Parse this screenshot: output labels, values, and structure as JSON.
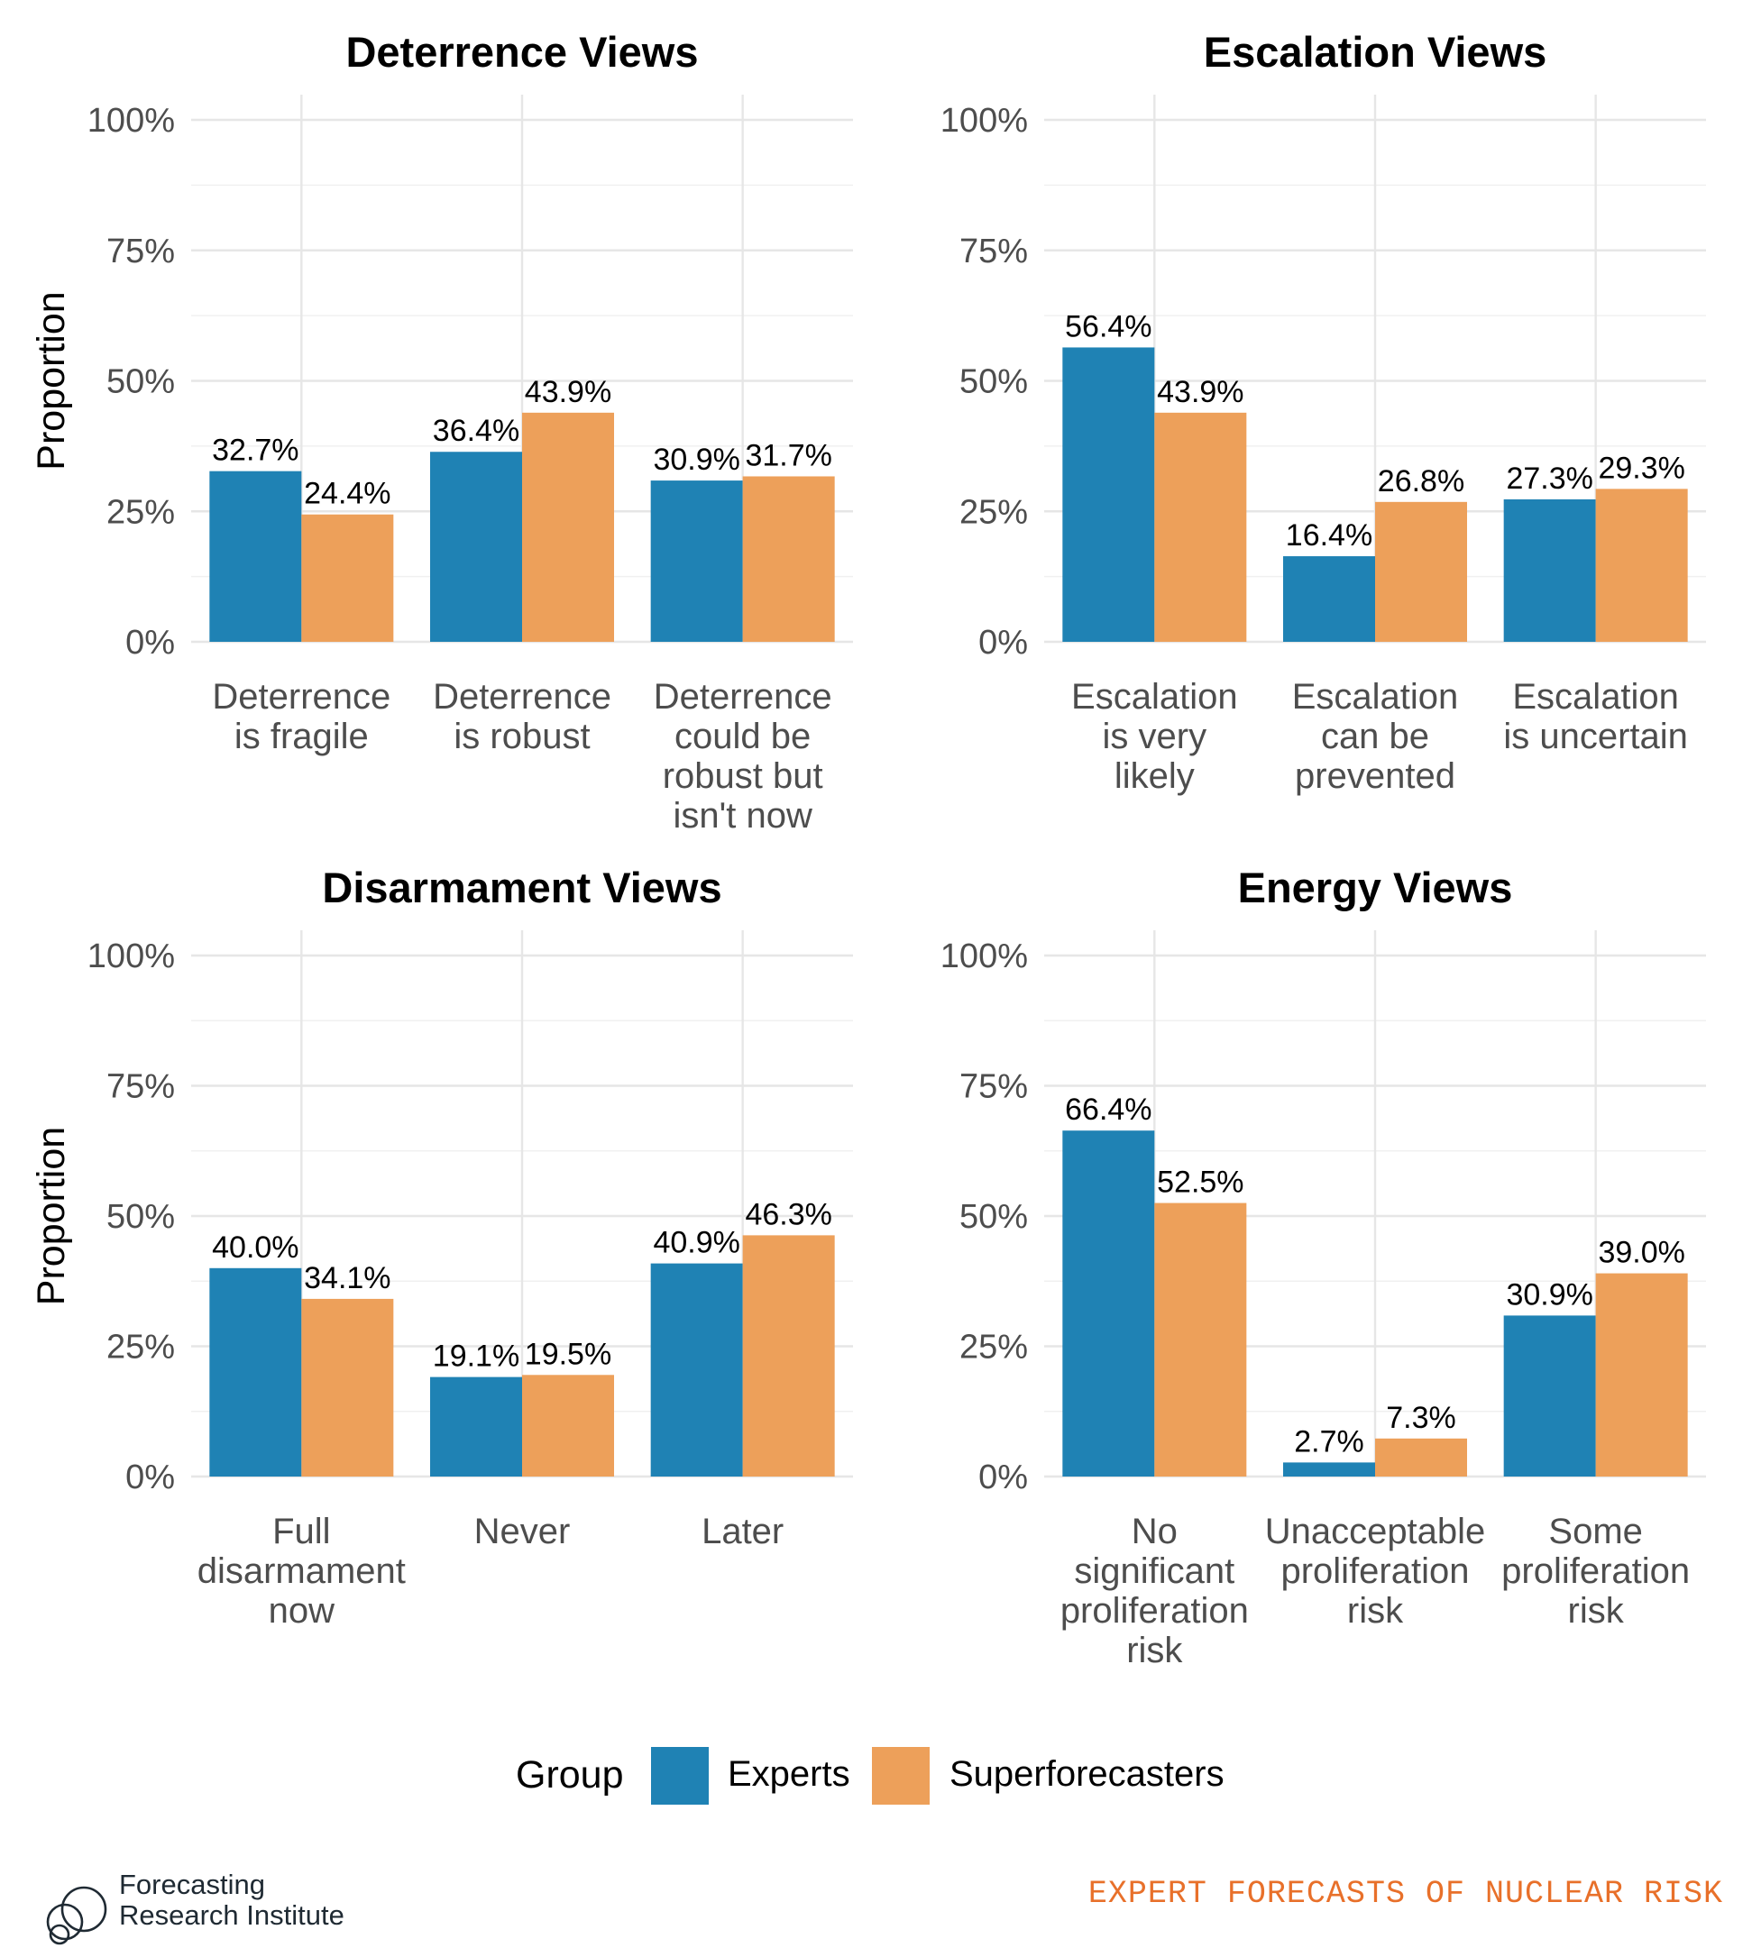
{
  "chart_data": [
    {
      "type": "bar",
      "title": "Deterrence Views",
      "ylabel": "Proportion",
      "xlabel": "",
      "ylim": [
        0,
        1
      ],
      "yticks": [
        "0%",
        "25%",
        "50%",
        "75%",
        "100%"
      ],
      "categories": [
        [
          "Deterrence",
          "is fragile"
        ],
        [
          "Deterrence",
          "is robust"
        ],
        [
          "Deterrence",
          "could be",
          "robust but",
          "isn't now"
        ]
      ],
      "series": [
        {
          "name": "Experts",
          "values": [
            0.327,
            0.364,
            0.309
          ],
          "labels": [
            "32.7%",
            "36.4%",
            "30.9%"
          ]
        },
        {
          "name": "Superforecasters",
          "values": [
            0.244,
            0.439,
            0.317
          ],
          "labels": [
            "24.4%",
            "43.9%",
            "31.7%"
          ]
        }
      ]
    },
    {
      "type": "bar",
      "title": "Escalation Views",
      "ylabel": "",
      "xlabel": "",
      "ylim": [
        0,
        1
      ],
      "yticks": [
        "0%",
        "25%",
        "50%",
        "75%",
        "100%"
      ],
      "categories": [
        [
          "Escalation",
          "is very",
          "likely"
        ],
        [
          "Escalation",
          "can be",
          "prevented"
        ],
        [
          "Escalation",
          "is uncertain"
        ]
      ],
      "series": [
        {
          "name": "Experts",
          "values": [
            0.564,
            0.164,
            0.273
          ],
          "labels": [
            "56.4%",
            "16.4%",
            "27.3%"
          ]
        },
        {
          "name": "Superforecasters",
          "values": [
            0.439,
            0.268,
            0.293
          ],
          "labels": [
            "43.9%",
            "26.8%",
            "29.3%"
          ]
        }
      ]
    },
    {
      "type": "bar",
      "title": "Disarmament Views",
      "ylabel": "Proportion",
      "xlabel": "",
      "ylim": [
        0,
        1
      ],
      "yticks": [
        "0%",
        "25%",
        "50%",
        "75%",
        "100%"
      ],
      "categories": [
        [
          "Full",
          "disarmament",
          "now"
        ],
        [
          "Never"
        ],
        [
          "Later"
        ]
      ],
      "series": [
        {
          "name": "Experts",
          "values": [
            0.4,
            0.191,
            0.409
          ],
          "labels": [
            "40.0%",
            "19.1%",
            "40.9%"
          ]
        },
        {
          "name": "Superforecasters",
          "values": [
            0.341,
            0.195,
            0.463
          ],
          "labels": [
            "34.1%",
            "19.5%",
            "46.3%"
          ]
        }
      ]
    },
    {
      "type": "bar",
      "title": "Energy Views",
      "ylabel": "",
      "xlabel": "",
      "ylim": [
        0,
        1
      ],
      "yticks": [
        "0%",
        "25%",
        "50%",
        "75%",
        "100%"
      ],
      "categories": [
        [
          "No",
          "significant",
          "proliferation",
          "risk"
        ],
        [
          "Unacceptable",
          "proliferation",
          "risk"
        ],
        [
          "Some",
          "proliferation",
          "risk"
        ]
      ],
      "series": [
        {
          "name": "Experts",
          "values": [
            0.664,
            0.027,
            0.309
          ],
          "labels": [
            "66.4%",
            "2.7%",
            "30.9%"
          ]
        },
        {
          "name": "Superforecasters",
          "values": [
            0.525,
            0.073,
            0.39
          ],
          "labels": [
            "52.5%",
            "7.3%",
            "39.0%"
          ]
        }
      ]
    }
  ],
  "legend": {
    "title": "Group",
    "placement": "bottom",
    "items": [
      {
        "label": "Experts",
        "color": "#1f82b4"
      },
      {
        "label": "Superforecasters",
        "color": "#eda05a"
      }
    ]
  },
  "colors": {
    "experts": "#1f82b4",
    "superforecasters": "#eda05a"
  },
  "footer": {
    "logo_line1": "Forecasting",
    "logo_line2": "Research Institute",
    "tagline": "EXPERT FORECASTS OF NUCLEAR RISK"
  }
}
